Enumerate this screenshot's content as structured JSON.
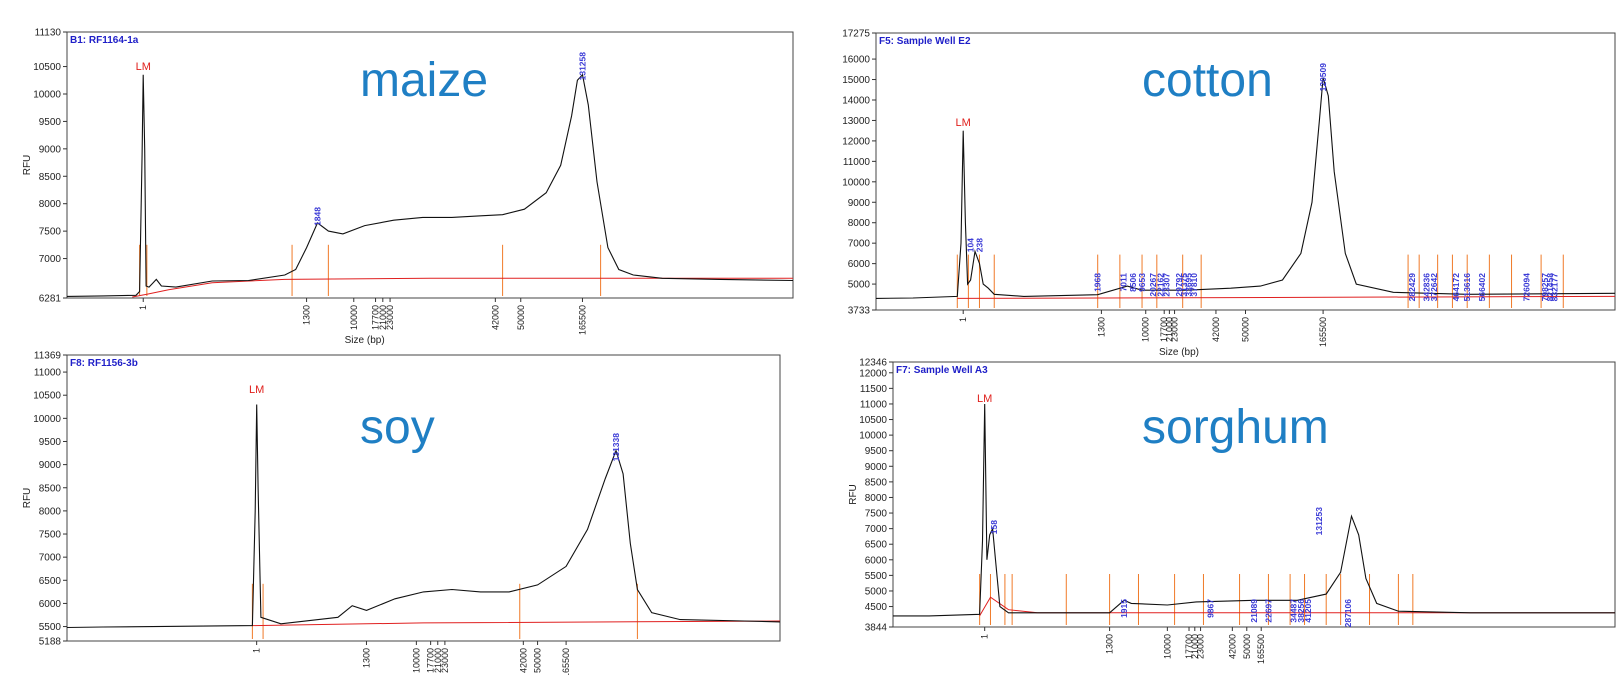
{
  "chart_data": [
    {
      "id": "maize",
      "type": "line",
      "title": "B1: RF1164-1a",
      "overlay_label": "maize",
      "ylabel": "RFU",
      "xlabel": "Size (bp)",
      "ymin": 6281,
      "ymax": 11130,
      "yticks": [
        6281,
        7000,
        7500,
        8000,
        8500,
        9000,
        9500,
        10000,
        10500,
        11130
      ],
      "xticks": [
        "1",
        "1300",
        "10000",
        "17700",
        "21000",
        "23000",
        "42000",
        "50000",
        "165500"
      ],
      "marker_label": "LM",
      "peak_labels": [
        "1848",
        "131258"
      ],
      "trace": [
        [
          0,
          6310
        ],
        [
          0.05,
          6320
        ],
        [
          0.095,
          6330
        ],
        [
          0.1,
          6400
        ],
        [
          0.1035,
          8900
        ],
        [
          0.105,
          10350
        ],
        [
          0.107,
          9000
        ],
        [
          0.109,
          6500
        ],
        [
          0.113,
          6480
        ],
        [
          0.118,
          6550
        ],
        [
          0.123,
          6620
        ],
        [
          0.13,
          6500
        ],
        [
          0.15,
          6480
        ],
        [
          0.2,
          6590
        ],
        [
          0.25,
          6600
        ],
        [
          0.3,
          6700
        ],
        [
          0.315,
          6800
        ],
        [
          0.33,
          7200
        ],
        [
          0.345,
          7650
        ],
        [
          0.36,
          7500
        ],
        [
          0.38,
          7450
        ],
        [
          0.41,
          7600
        ],
        [
          0.45,
          7700
        ],
        [
          0.49,
          7750
        ],
        [
          0.53,
          7750
        ],
        [
          0.57,
          7780
        ],
        [
          0.6,
          7800
        ],
        [
          0.63,
          7900
        ],
        [
          0.66,
          8200
        ],
        [
          0.68,
          8700
        ],
        [
          0.695,
          9600
        ],
        [
          0.703,
          10250
        ],
        [
          0.71,
          10350
        ],
        [
          0.718,
          9800
        ],
        [
          0.73,
          8400
        ],
        [
          0.745,
          7200
        ],
        [
          0.76,
          6800
        ],
        [
          0.78,
          6700
        ],
        [
          0.82,
          6640
        ],
        [
          0.9,
          6620
        ],
        [
          1,
          6600
        ]
      ],
      "baseline": [
        [
          0.09,
          6300
        ],
        [
          0.11,
          6350
        ],
        [
          0.14,
          6430
        ],
        [
          0.2,
          6560
        ],
        [
          0.3,
          6620
        ],
        [
          0.5,
          6640
        ],
        [
          0.75,
          6640
        ],
        [
          1,
          6640
        ]
      ]
    },
    {
      "id": "cotton",
      "type": "line",
      "title": "F5: Sample Well E2",
      "overlay_label": "cotton",
      "ylabel": "",
      "xlabel": "Size (bp)",
      "ymin": 3733,
      "ymax": 17275,
      "yticks": [
        3733,
        5000,
        6000,
        7000,
        8000,
        9000,
        10000,
        11000,
        12000,
        13000,
        14000,
        15000,
        16000,
        17275
      ],
      "xticks": [
        "1",
        "1300",
        "10000",
        "17700",
        "21000",
        "23000",
        "42000",
        "50000",
        "165500"
      ],
      "marker_label": "LM",
      "peak_labels": [
        "104",
        "238",
        "1968",
        "7011",
        "8506",
        "9653",
        "20267",
        "22162",
        "23307",
        "29792",
        "31375",
        "33695",
        "37810",
        "120509",
        "282429",
        "342836",
        "372642",
        "464172",
        "513616",
        "566402",
        "726094",
        "798257",
        "821458",
        "832177"
      ],
      "trace": [
        [
          0,
          4300
        ],
        [
          0.05,
          4320
        ],
        [
          0.11,
          4400
        ],
        [
          0.115,
          7000
        ],
        [
          0.118,
          12500
        ],
        [
          0.121,
          8000
        ],
        [
          0.124,
          5000
        ],
        [
          0.128,
          5200
        ],
        [
          0.134,
          6600
        ],
        [
          0.14,
          6000
        ],
        [
          0.145,
          5000
        ],
        [
          0.152,
          4800
        ],
        [
          0.16,
          4500
        ],
        [
          0.2,
          4400
        ],
        [
          0.3,
          4480
        ],
        [
          0.34,
          4900
        ],
        [
          0.36,
          4700
        ],
        [
          0.42,
          4700
        ],
        [
          0.48,
          4800
        ],
        [
          0.52,
          4900
        ],
        [
          0.55,
          5200
        ],
        [
          0.575,
          6500
        ],
        [
          0.59,
          9000
        ],
        [
          0.6,
          13000
        ],
        [
          0.605,
          15100
        ],
        [
          0.612,
          14200
        ],
        [
          0.62,
          10500
        ],
        [
          0.635,
          6500
        ],
        [
          0.65,
          5000
        ],
        [
          0.7,
          4600
        ],
        [
          0.8,
          4500
        ],
        [
          1,
          4550
        ]
      ],
      "baseline": [
        [
          0.11,
          4300
        ],
        [
          1,
          4400
        ]
      ]
    },
    {
      "id": "soy",
      "type": "line",
      "title": "F8: RF1156-3b",
      "overlay_label": "soy",
      "ylabel": "RFU",
      "xlabel": "",
      "ymin": 5188,
      "ymax": 11369,
      "yticks": [
        5188,
        5500,
        6000,
        6500,
        7000,
        7500,
        8000,
        8500,
        9000,
        9500,
        10000,
        10500,
        11000,
        11369
      ],
      "xticks": [
        "1",
        "1300",
        "10000",
        "17700",
        "21000",
        "23000",
        "42000",
        "50000",
        "165500"
      ],
      "marker_label": "LM",
      "peak_labels": [
        "131338"
      ],
      "trace": [
        [
          0,
          5480
        ],
        [
          0.05,
          5490
        ],
        [
          0.12,
          5500
        ],
        [
          0.26,
          5520
        ],
        [
          0.264,
          8000
        ],
        [
          0.266,
          10300
        ],
        [
          0.268,
          8500
        ],
        [
          0.272,
          5700
        ],
        [
          0.3,
          5560
        ],
        [
          0.38,
          5700
        ],
        [
          0.4,
          5950
        ],
        [
          0.42,
          5850
        ],
        [
          0.46,
          6100
        ],
        [
          0.5,
          6250
        ],
        [
          0.54,
          6300
        ],
        [
          0.58,
          6250
        ],
        [
          0.62,
          6250
        ],
        [
          0.66,
          6400
        ],
        [
          0.7,
          6800
        ],
        [
          0.73,
          7600
        ],
        [
          0.755,
          8700
        ],
        [
          0.77,
          9300
        ],
        [
          0.78,
          8800
        ],
        [
          0.79,
          7300
        ],
        [
          0.8,
          6300
        ],
        [
          0.82,
          5800
        ],
        [
          0.86,
          5650
        ],
        [
          0.95,
          5620
        ],
        [
          1,
          5600
        ]
      ],
      "baseline": [
        [
          0.26,
          5520
        ],
        [
          0.5,
          5580
        ],
        [
          1,
          5620
        ]
      ]
    },
    {
      "id": "sorghum",
      "type": "line",
      "title": "F7: Sample Well A3",
      "overlay_label": "sorghum",
      "ylabel": "RFU",
      "xlabel": "",
      "ymin": 3844,
      "ymax": 12346,
      "yticks": [
        3844,
        4500,
        5000,
        5500,
        6000,
        6500,
        7000,
        7500,
        8000,
        8500,
        9000,
        9500,
        10000,
        10500,
        11000,
        11500,
        12000,
        12346
      ],
      "xticks": [
        "1",
        "1300",
        "10000",
        "17700",
        "21000",
        "23000",
        "42000",
        "50000",
        "165500"
      ],
      "marker_label": "LM",
      "peak_labels": [
        "158",
        "1915",
        "9867",
        "21089",
        "22697",
        "34487",
        "38256",
        "41205",
        "131253",
        "287106"
      ],
      "trace": [
        [
          0,
          4200
        ],
        [
          0.05,
          4200
        ],
        [
          0.12,
          4250
        ],
        [
          0.124,
          6600
        ],
        [
          0.127,
          11000
        ],
        [
          0.13,
          6000
        ],
        [
          0.134,
          6800
        ],
        [
          0.138,
          7000
        ],
        [
          0.142,
          6000
        ],
        [
          0.148,
          4500
        ],
        [
          0.16,
          4300
        ],
        [
          0.3,
          4300
        ],
        [
          0.32,
          4700
        ],
        [
          0.33,
          4600
        ],
        [
          0.38,
          4550
        ],
        [
          0.42,
          4650
        ],
        [
          0.5,
          4700
        ],
        [
          0.56,
          4700
        ],
        [
          0.6,
          4900
        ],
        [
          0.62,
          5600
        ],
        [
          0.635,
          7400
        ],
        [
          0.645,
          6800
        ],
        [
          0.655,
          5400
        ],
        [
          0.67,
          4600
        ],
        [
          0.7,
          4350
        ],
        [
          0.8,
          4300
        ],
        [
          1,
          4300
        ]
      ],
      "baseline": [
        [
          0.12,
          4200
        ],
        [
          0.135,
          4800
        ],
        [
          0.16,
          4400
        ],
        [
          0.2,
          4300
        ],
        [
          1,
          4300
        ]
      ]
    }
  ]
}
